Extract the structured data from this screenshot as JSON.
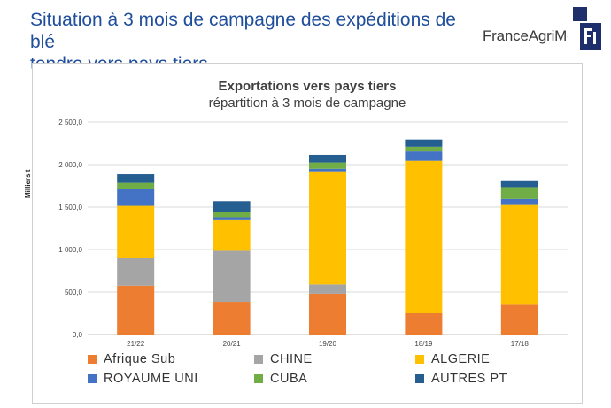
{
  "page": {
    "title_line1": "Situation à 3 mois de campagne des expéditions de blé",
    "title_line2": "tendre vers pays tiers",
    "logo_text": "FranceAgriMer"
  },
  "chart_data": {
    "type": "stacked-bar",
    "title": "Exportations vers pays tiers",
    "subtitle": "répartition à 3 mois de campagne",
    "ylabel": "Milliers t",
    "ylim": [
      0,
      2500
    ],
    "yticks": [
      0,
      500,
      1000,
      1500,
      2000,
      2500
    ],
    "ytick_labels": [
      "0,0",
      "500,0",
      "1 000,0",
      "1 500,0",
      "2 000,0",
      "2 500,0"
    ],
    "categories": [
      "21/22",
      "20/21",
      "19/20",
      "18/19",
      "17/18"
    ],
    "series": [
      {
        "name": "Afrique Sub",
        "color": "#ed7d31",
        "values": [
          575,
          385,
          480,
          250,
          350
        ]
      },
      {
        "name": "CHINE",
        "color": "#a5a5a5",
        "values": [
          330,
          600,
          110,
          0,
          0
        ]
      },
      {
        "name": "ALGERIE",
        "color": "#ffc000",
        "values": [
          610,
          360,
          1330,
          1795,
          1175
        ]
      },
      {
        "name": "ROYAUME UNI",
        "color": "#4472c4",
        "values": [
          200,
          35,
          30,
          110,
          70
        ]
      },
      {
        "name": "CUBA",
        "color": "#70ad47",
        "values": [
          70,
          60,
          75,
          55,
          140
        ]
      },
      {
        "name": "AUTRES PT",
        "color": "#255e91",
        "values": [
          100,
          130,
          90,
          85,
          80
        ]
      }
    ],
    "grid": true,
    "legend_position": "bottom"
  }
}
